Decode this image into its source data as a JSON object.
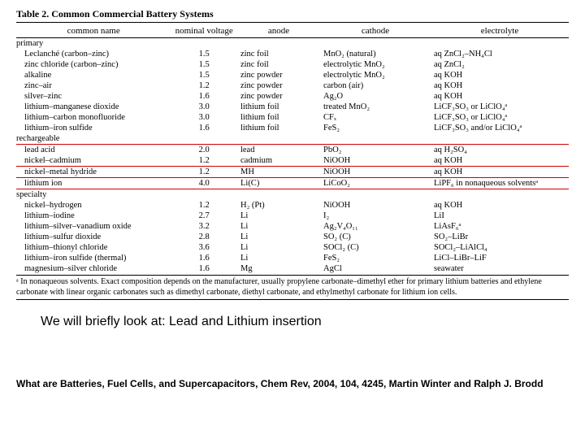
{
  "table": {
    "title": "Table 2. Common Commercial Battery Systems",
    "columns": [
      "common name",
      "nominal voltage",
      "anode",
      "cathode",
      "electrolyte"
    ],
    "sections": [
      {
        "label": "primary",
        "rows": [
          {
            "name": "Leclanché (carbon–zinc)",
            "v": "1.5",
            "anode": "zinc foil",
            "cathode": "MnO₂ (natural)",
            "elec": "aq ZnCl₂–NH₄Cl"
          },
          {
            "name": "zinc chloride (carbon–zinc)",
            "v": "1.5",
            "anode": "zinc foil",
            "cathode": "electrolytic MnO₂",
            "elec": "aq ZnCl₂"
          },
          {
            "name": "alkaline",
            "v": "1.5",
            "anode": "zinc powder",
            "cathode": "electrolytic MnO₂",
            "elec": "aq KOH"
          },
          {
            "name": "zinc–air",
            "v": "1.2",
            "anode": "zinc powder",
            "cathode": "carbon (air)",
            "elec": "aq KOH"
          },
          {
            "name": "silver–zinc",
            "v": "1.6",
            "anode": "zinc powder",
            "cathode": "Ag₂O",
            "elec": "aq KOH"
          },
          {
            "name": "lithium–manganese dioxide",
            "v": "3.0",
            "anode": "lithium foil",
            "cathode": "treated MnO₂",
            "elec": "LiCF₃SO₃ or LiClO₄ᵃ"
          },
          {
            "name": "lithium–carbon monofluoride",
            "v": "3.0",
            "anode": "lithium foil",
            "cathode": "CFₓ",
            "elec": "LiCF₃SO₃ or LiClO₄ᵃ"
          },
          {
            "name": "lithium–iron sulfide",
            "v": "1.6",
            "anode": "lithium foil",
            "cathode": "FeS₂",
            "elec": "LiCF₃SO₃ and/or LiClO₄ᵃ"
          }
        ]
      },
      {
        "label": "rechargeable",
        "rows": [
          {
            "name": "lead acid",
            "v": "2.0",
            "anode": "lead",
            "cathode": "PbO₂",
            "elec": "aq H₂SO₄",
            "hl": "top"
          },
          {
            "name": "nickel–cadmium",
            "v": "1.2",
            "anode": "cadmium",
            "cathode": "NiOOH",
            "elec": "aq KOH",
            "hl": "bot"
          },
          {
            "name": "nickel–metal hydride",
            "v": "1.2",
            "anode": "MH",
            "cathode": "NiOOH",
            "elec": "aq KOH"
          },
          {
            "name": "lithium ion",
            "v": "4.0",
            "anode": "Li(C)",
            "cathode": "LiCoO₂",
            "elec": "LiPF₆ in nonaqueous solventsᵃ",
            "hl": "both"
          }
        ]
      },
      {
        "label": "specialty",
        "rows": [
          {
            "name": "nickel–hydrogen",
            "v": "1.2",
            "anode": "H₂ (Pt)",
            "cathode": "NiOOH",
            "elec": "aq KOH"
          },
          {
            "name": "lithium–iodine",
            "v": "2.7",
            "anode": "Li",
            "cathode": "I₂",
            "elec": "LiI"
          },
          {
            "name": "lithium–silver–vanadium oxide",
            "v": "3.2",
            "anode": "Li",
            "cathode": "Ag₂V₄O₁₁",
            "elec": "LiAsF₆ᵃ"
          },
          {
            "name": "lithium–sulfur dioxide",
            "v": "2.8",
            "anode": "Li",
            "cathode": "SO₂ (C)",
            "elec": "SO₂–LiBr"
          },
          {
            "name": "lithium–thionyl chloride",
            "v": "3.6",
            "anode": "Li",
            "cathode": "SOCl₂ (C)",
            "elec": "SOCl₂–LiAlCl₄"
          },
          {
            "name": "lithium–iron sulfide (thermal)",
            "v": "1.6",
            "anode": "Li",
            "cathode": "FeS₂",
            "elec": "LiCl–LiBr–LiF"
          },
          {
            "name": "magnesium–silver chloride",
            "v": "1.6",
            "anode": "Mg",
            "cathode": "AgCl",
            "elec": "seawater"
          }
        ]
      }
    ],
    "footnote": "ᵃ In nonaqueous solvents. Exact composition depends on the manufacturer, usually propylene carbonate–dimethyl ether for primary lithium batteries and ethylene carbonate with linear organic carbonates such as dimethyl carbonate, diethyl carbonate, and ethylmethyl carbonate for lithium ion cells."
  },
  "note": "We will briefly look at:  Lead and Lithium insertion",
  "citation": "What are Batteries, Fuel Cells, and Supercapacitors, Chem Rev, 2004, 104, 4245, Martin Winter and Ralph J. Brodd"
}
